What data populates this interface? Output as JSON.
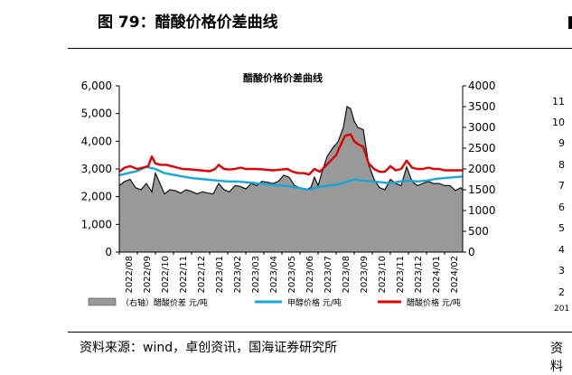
{
  "figure": {
    "title": "图 79：醋酸价格价差曲线",
    "source": "资料来源：wind，卓创资讯，国海证券研究所"
  },
  "edge_fragments": {
    "right_ticks": [
      "11",
      "10",
      "9",
      "8",
      "7",
      "6",
      "5",
      "4",
      "3",
      "2"
    ],
    "right_year": "201",
    "bottom_right": "资料"
  },
  "chart_data": {
    "type": "line",
    "title": "醋酸价格价差曲线",
    "y_left": {
      "ticks": [
        "0",
        "1,000",
        "2,000",
        "3,000",
        "4,000",
        "5,000",
        "6,000"
      ],
      "range": [
        0,
        6000
      ]
    },
    "y_right": {
      "ticks": [
        "0",
        "500",
        "1000",
        "1500",
        "2000",
        "2500",
        "3000",
        "3500",
        "4000"
      ],
      "range": [
        0,
        4000
      ]
    },
    "x_labels": [
      "2022/08",
      "2022/09",
      "2022/10",
      "2022/11",
      "2022/12",
      "2023/01",
      "2023/02",
      "2023/03",
      "2023/04",
      "2023/05",
      "2023/06",
      "2023/07",
      "2023/08",
      "2023/09",
      "2023/10",
      "2023/11",
      "2023/12",
      "2024/01",
      "2024/02"
    ],
    "x_range": [
      0,
      19
    ],
    "grid": false,
    "legend": "bottom",
    "series": [
      {
        "name": "（右轴）醋酸价差 元/吨",
        "kind": "area",
        "axis": "right",
        "color": "#999999",
        "points": [
          [
            0,
            1600
          ],
          [
            0.3,
            1700
          ],
          [
            0.6,
            1750
          ],
          [
            0.9,
            1550
          ],
          [
            1.2,
            1500
          ],
          [
            1.5,
            1650
          ],
          [
            1.8,
            1450
          ],
          [
            2.0,
            1900
          ],
          [
            2.2,
            1700
          ],
          [
            2.5,
            1400
          ],
          [
            2.8,
            1500
          ],
          [
            3.1,
            1480
          ],
          [
            3.4,
            1420
          ],
          [
            3.7,
            1500
          ],
          [
            4.0,
            1460
          ],
          [
            4.3,
            1400
          ],
          [
            4.6,
            1450
          ],
          [
            4.9,
            1420
          ],
          [
            5.2,
            1400
          ],
          [
            5.5,
            1650
          ],
          [
            5.8,
            1500
          ],
          [
            6.1,
            1450
          ],
          [
            6.4,
            1600
          ],
          [
            6.7,
            1580
          ],
          [
            7.0,
            1520
          ],
          [
            7.3,
            1650
          ],
          [
            7.6,
            1600
          ],
          [
            7.9,
            1700
          ],
          [
            8.2,
            1680
          ],
          [
            8.5,
            1650
          ],
          [
            8.8,
            1700
          ],
          [
            9.1,
            1850
          ],
          [
            9.4,
            1800
          ],
          [
            9.7,
            1600
          ],
          [
            10.0,
            1550
          ],
          [
            10.3,
            1500
          ],
          [
            10.6,
            1550
          ],
          [
            10.8,
            1800
          ],
          [
            11.0,
            1600
          ],
          [
            11.2,
            1900
          ],
          [
            11.5,
            2300
          ],
          [
            11.8,
            2500
          ],
          [
            12.1,
            2650
          ],
          [
            12.4,
            3000
          ],
          [
            12.6,
            3500
          ],
          [
            12.8,
            3450
          ],
          [
            13.0,
            3150
          ],
          [
            13.2,
            3000
          ],
          [
            13.5,
            2950
          ],
          [
            13.8,
            2100
          ],
          [
            14.1,
            1750
          ],
          [
            14.4,
            1550
          ],
          [
            14.7,
            1500
          ],
          [
            15.0,
            1750
          ],
          [
            15.3,
            1650
          ],
          [
            15.6,
            1600
          ],
          [
            15.9,
            2050
          ],
          [
            16.2,
            1700
          ],
          [
            16.5,
            1600
          ],
          [
            16.8,
            1650
          ],
          [
            17.1,
            1700
          ],
          [
            17.4,
            1650
          ],
          [
            17.7,
            1650
          ],
          [
            18.0,
            1600
          ],
          [
            18.3,
            1600
          ],
          [
            18.6,
            1480
          ],
          [
            18.9,
            1550
          ],
          [
            19.0,
            1500
          ]
        ]
      },
      {
        "name": "甲醇价格 元/吨",
        "kind": "line",
        "axis": "right",
        "color": "#1aa6d8",
        "points": [
          [
            0,
            1850
          ],
          [
            0.5,
            1900
          ],
          [
            1.0,
            1950
          ],
          [
            1.5,
            2050
          ],
          [
            2.0,
            2000
          ],
          [
            2.5,
            1900
          ],
          [
            3.0,
            1860
          ],
          [
            3.5,
            1820
          ],
          [
            4.0,
            1780
          ],
          [
            4.5,
            1760
          ],
          [
            5.0,
            1740
          ],
          [
            5.5,
            1720
          ],
          [
            6.0,
            1700
          ],
          [
            6.5,
            1700
          ],
          [
            7.0,
            1680
          ],
          [
            7.5,
            1660
          ],
          [
            8.0,
            1640
          ],
          [
            8.5,
            1620
          ],
          [
            9.0,
            1600
          ],
          [
            9.5,
            1580
          ],
          [
            10.0,
            1540
          ],
          [
            10.5,
            1500
          ],
          [
            11.0,
            1560
          ],
          [
            11.5,
            1600
          ],
          [
            12.0,
            1620
          ],
          [
            12.5,
            1680
          ],
          [
            13.0,
            1750
          ],
          [
            13.5,
            1720
          ],
          [
            14.0,
            1700
          ],
          [
            14.5,
            1680
          ],
          [
            15.0,
            1650
          ],
          [
            15.5,
            1700
          ],
          [
            16.0,
            1720
          ],
          [
            16.5,
            1700
          ],
          [
            17.0,
            1720
          ],
          [
            17.5,
            1760
          ],
          [
            18.0,
            1780
          ],
          [
            18.5,
            1800
          ],
          [
            19.0,
            1820
          ]
        ]
      },
      {
        "name": "醋酸价格 元/吨",
        "kind": "line",
        "axis": "left",
        "color": "#e00000",
        "points": [
          [
            0,
            2900
          ],
          [
            0.3,
            3050
          ],
          [
            0.6,
            3100
          ],
          [
            1.0,
            3000
          ],
          [
            1.3,
            3050
          ],
          [
            1.6,
            3100
          ],
          [
            1.8,
            3450
          ],
          [
            2.0,
            3200
          ],
          [
            2.3,
            3150
          ],
          [
            2.6,
            3150
          ],
          [
            2.9,
            3100
          ],
          [
            3.2,
            3050
          ],
          [
            3.5,
            3000
          ],
          [
            4.0,
            2980
          ],
          [
            4.5,
            2950
          ],
          [
            5.0,
            2920
          ],
          [
            5.3,
            3000
          ],
          [
            5.5,
            3150
          ],
          [
            5.8,
            3000
          ],
          [
            6.1,
            2980
          ],
          [
            6.4,
            3000
          ],
          [
            6.7,
            3050
          ],
          [
            7.0,
            3000
          ],
          [
            7.5,
            3000
          ],
          [
            8.0,
            2980
          ],
          [
            8.5,
            2950
          ],
          [
            9.0,
            2980
          ],
          [
            9.3,
            3000
          ],
          [
            9.6,
            2900
          ],
          [
            9.9,
            2850
          ],
          [
            10.2,
            2850
          ],
          [
            10.5,
            2800
          ],
          [
            10.8,
            3000
          ],
          [
            11.1,
            2900
          ],
          [
            11.4,
            3100
          ],
          [
            11.7,
            3300
          ],
          [
            12.0,
            3500
          ],
          [
            12.2,
            3800
          ],
          [
            12.5,
            4200
          ],
          [
            12.8,
            4250
          ],
          [
            13.0,
            4000
          ],
          [
            13.2,
            3900
          ],
          [
            13.5,
            3800
          ],
          [
            13.8,
            3200
          ],
          [
            14.1,
            3000
          ],
          [
            14.4,
            2900
          ],
          [
            14.7,
            2900
          ],
          [
            15.0,
            3100
          ],
          [
            15.3,
            2950
          ],
          [
            15.6,
            3000
          ],
          [
            15.9,
            3300
          ],
          [
            16.2,
            3050
          ],
          [
            16.5,
            3000
          ],
          [
            16.8,
            3000
          ],
          [
            17.1,
            3050
          ],
          [
            17.4,
            3000
          ],
          [
            17.7,
            3000
          ],
          [
            18.0,
            2950
          ],
          [
            18.3,
            2950
          ],
          [
            18.6,
            2950
          ],
          [
            19.0,
            2950
          ]
        ]
      }
    ]
  }
}
